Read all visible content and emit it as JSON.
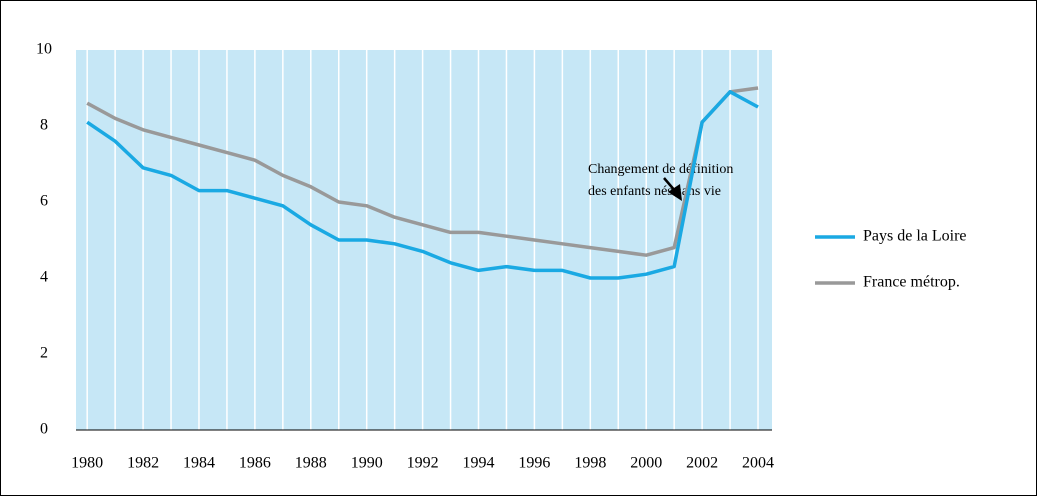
{
  "chart_data": {
    "type": "line",
    "x": [
      1980,
      1981,
      1982,
      1983,
      1984,
      1985,
      1986,
      1987,
      1988,
      1989,
      1990,
      1991,
      1992,
      1993,
      1994,
      1995,
      1996,
      1997,
      1998,
      1999,
      2000,
      2001,
      2002,
      2003,
      2004
    ],
    "series": [
      {
        "name": "Pays de la Loire",
        "color": "#1aa9e3",
        "values": [
          8.1,
          7.6,
          6.9,
          6.7,
          6.3,
          6.3,
          6.1,
          5.9,
          5.4,
          5.0,
          5.0,
          4.9,
          4.7,
          4.4,
          4.2,
          4.3,
          4.2,
          4.2,
          4.0,
          4.0,
          4.1,
          4.3,
          8.1,
          8.9,
          8.5
        ]
      },
      {
        "name": "France métrop.",
        "color": "#999999",
        "values": [
          8.6,
          8.2,
          7.9,
          7.7,
          7.5,
          7.3,
          7.1,
          6.7,
          6.4,
          6.0,
          5.9,
          5.6,
          5.4,
          5.2,
          5.2,
          5.1,
          5.0,
          4.9,
          4.8,
          4.7,
          4.6,
          4.8,
          8.1,
          8.9,
          9.0
        ]
      }
    ],
    "xlim": [
      1979.6,
      2004.5
    ],
    "xticks": [
      1980,
      1982,
      1984,
      1986,
      1988,
      1990,
      1992,
      1994,
      1996,
      1998,
      2000,
      2002,
      2004
    ],
    "ylim": [
      0,
      10
    ],
    "yticks": [
      0,
      2,
      4,
      6,
      8,
      10
    ],
    "annotation": [
      "Changement de définition",
      "des enfants nés sans vie"
    ],
    "background": "#c6e7f6",
    "legend": "right"
  }
}
